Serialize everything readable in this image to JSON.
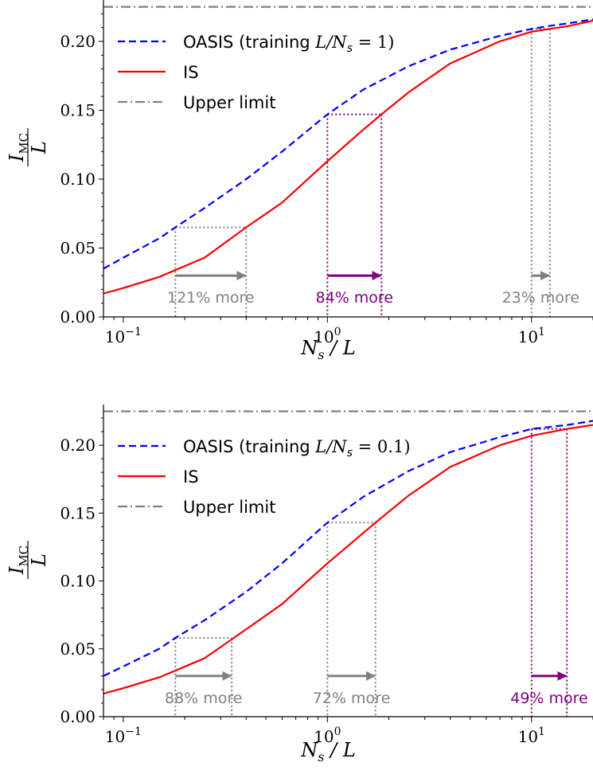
{
  "colors": {
    "oasis": "#0000ff",
    "is": "#ff0000",
    "upper_limit": "#808080",
    "highlight": "#800080",
    "neutral": "#808080"
  },
  "chart_data": [
    {
      "type": "line",
      "x_scale": "log",
      "xlim": [
        0.08,
        20
      ],
      "ylim": [
        0,
        0.23
      ],
      "xlabel": "N_s / L",
      "ylabel": "I_MC / L",
      "x_ticks": [
        {
          "value": 0.1,
          "label_base": "10",
          "label_exp": "−1"
        },
        {
          "value": 1,
          "label_base": "10",
          "label_exp": "0"
        },
        {
          "value": 10,
          "label_base": "10",
          "label_exp": "1"
        }
      ],
      "y_ticks": [
        "0.00",
        "0.05",
        "0.10",
        "0.15",
        "0.20"
      ],
      "legend": {
        "placement": "top-left",
        "entries": [
          {
            "series": "oasis",
            "label_pre": "OASIS (training ",
            "label_math": "L/N",
            "label_sub": "s",
            "label_post": " = 1)"
          },
          {
            "series": "is",
            "label": "IS"
          },
          {
            "series": "upper",
            "label": "Upper limit"
          }
        ]
      },
      "series": [
        {
          "name": "OASIS (training L/N_s = 1)",
          "key": "oasis",
          "style": "dashed",
          "x": [
            0.08,
            0.1,
            0.15,
            0.18,
            0.25,
            0.4,
            0.6,
            1.0,
            1.5,
            2.5,
            4,
            7,
            10,
            12,
            15,
            20
          ],
          "y": [
            0.035,
            0.043,
            0.057,
            0.065,
            0.079,
            0.1,
            0.12,
            0.147,
            0.165,
            0.182,
            0.194,
            0.204,
            0.209,
            0.211,
            0.213,
            0.216
          ]
        },
        {
          "name": "IS",
          "key": "is",
          "style": "solid",
          "x": [
            0.08,
            0.1,
            0.15,
            0.18,
            0.25,
            0.4,
            0.6,
            1.0,
            1.5,
            1.84,
            2.5,
            4,
            7,
            10,
            12.3,
            15,
            20
          ],
          "y": [
            0.017,
            0.021,
            0.029,
            0.034,
            0.043,
            0.065,
            0.083,
            0.113,
            0.136,
            0.147,
            0.163,
            0.184,
            0.2,
            0.207,
            0.209,
            0.211,
            0.215
          ]
        },
        {
          "name": "Upper limit",
          "key": "upper",
          "style": "dashdot",
          "y_const": 0.225
        }
      ],
      "annotations": [
        {
          "x1": 0.18,
          "x2": 0.4,
          "y": 0.065,
          "arrow_y": 0.03,
          "text": "121% more",
          "color": "neutral"
        },
        {
          "x1": 1.0,
          "x2": 1.84,
          "y": 0.147,
          "arrow_y": 0.03,
          "text": "84% more",
          "color": "highlight"
        },
        {
          "x1": 10.0,
          "x2": 12.3,
          "y": 0.209,
          "arrow_y": 0.03,
          "text": "23% more",
          "color": "neutral"
        }
      ]
    },
    {
      "type": "line",
      "x_scale": "log",
      "xlim": [
        0.08,
        20
      ],
      "ylim": [
        0,
        0.23
      ],
      "xlabel": "N_s / L",
      "ylabel": "I_MC / L",
      "x_ticks": [
        {
          "value": 0.1,
          "label_base": "10",
          "label_exp": "−1"
        },
        {
          "value": 1,
          "label_base": "10",
          "label_exp": "0"
        },
        {
          "value": 10,
          "label_base": "10",
          "label_exp": "1"
        }
      ],
      "y_ticks": [
        "0.00",
        "0.05",
        "0.10",
        "0.15",
        "0.20"
      ],
      "legend": {
        "placement": "top-left",
        "entries": [
          {
            "series": "oasis",
            "label_pre": "OASIS (training ",
            "label_math": "L/N",
            "label_sub": "s",
            "label_post": " = 0.1)"
          },
          {
            "series": "is",
            "label": "IS"
          },
          {
            "series": "upper",
            "label": "Upper limit"
          }
        ]
      },
      "series": [
        {
          "name": "OASIS (training L/N_s = 0.1)",
          "key": "oasis",
          "style": "dashed",
          "x": [
            0.08,
            0.1,
            0.15,
            0.18,
            0.25,
            0.4,
            0.6,
            1.0,
            1.5,
            2.5,
            4,
            7,
            10,
            15,
            20
          ],
          "y": [
            0.03,
            0.037,
            0.05,
            0.058,
            0.071,
            0.092,
            0.113,
            0.143,
            0.162,
            0.181,
            0.195,
            0.206,
            0.212,
            0.215,
            0.218
          ]
        },
        {
          "name": "IS",
          "key": "is",
          "style": "solid",
          "x": [
            0.08,
            0.1,
            0.15,
            0.18,
            0.25,
            0.34,
            0.6,
            1.0,
            1.72,
            2.5,
            4,
            7,
            10,
            14.9,
            20
          ],
          "y": [
            0.017,
            0.021,
            0.029,
            0.034,
            0.043,
            0.057,
            0.083,
            0.113,
            0.143,
            0.163,
            0.184,
            0.2,
            0.207,
            0.212,
            0.215
          ]
        },
        {
          "name": "Upper limit",
          "key": "upper",
          "style": "dashdot",
          "y_const": 0.225
        }
      ],
      "annotations": [
        {
          "x1": 0.18,
          "x2": 0.34,
          "y": 0.058,
          "arrow_y": 0.03,
          "text": "88% more",
          "color": "neutral"
        },
        {
          "x1": 1.0,
          "x2": 1.72,
          "y": 0.143,
          "arrow_y": 0.03,
          "text": "72% more",
          "color": "neutral"
        },
        {
          "x1": 10.0,
          "x2": 14.9,
          "y": 0.212,
          "arrow_y": 0.03,
          "text": "49% more",
          "color": "highlight"
        }
      ]
    }
  ]
}
